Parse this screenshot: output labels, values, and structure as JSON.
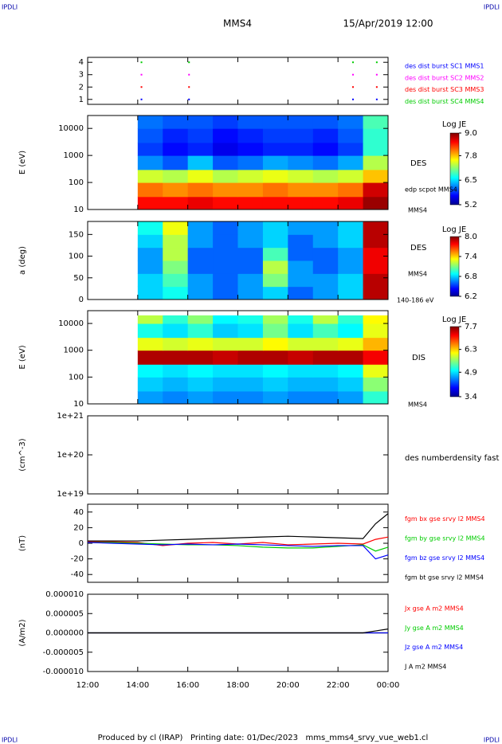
{
  "header": {
    "left": "IPDLI",
    "right": "IPDLI",
    "title": "MMS4",
    "date": "15/Apr/2019 12:00"
  },
  "footer": {
    "left": "IPDLI",
    "text": "Produced by cl (IRAP)   Printing date: 01/Dec/2023   mms_mms4_srvy_vue_web1.cl",
    "right": "IPDLI"
  },
  "chart_data": [
    {
      "type": "scatter",
      "xlim": [
        12,
        24
      ],
      "ylim": [
        0.6,
        4.4
      ],
      "yticks": [
        1,
        2,
        3,
        4
      ],
      "series": [
        {
          "name": "des dist burst SC1 MMS1",
          "color": "#0000ff",
          "x": [
            14.15,
            16.05,
            22.6,
            23.55
          ],
          "values": [
            1,
            1,
            1,
            1
          ]
        },
        {
          "name": "des dist burst SC2 MMS2",
          "color": "#ff00ff",
          "x": [
            14.15,
            16.05,
            22.6,
            23.55
          ],
          "values": [
            3,
            3,
            3,
            3
          ]
        },
        {
          "name": "des dist burst SC3 MMS3",
          "color": "#ff0000",
          "x": [
            14.15,
            16.05,
            22.6,
            23.55
          ],
          "values": [
            2,
            2,
            2,
            2
          ]
        },
        {
          "name": "des dist burst SC4 MMS4",
          "color": "#00cc00",
          "x": [
            14.15,
            16.05,
            22.6,
            23.55
          ],
          "values": [
            4,
            4,
            4,
            4
          ]
        }
      ]
    },
    {
      "type": "heatmap",
      "ylabel": "E (eV)",
      "log": true,
      "xlim": [
        12,
        24
      ],
      "ylim": [
        10,
        30000
      ],
      "yticks": [
        10,
        100,
        1000,
        10000
      ],
      "colormap": "jet",
      "colorbar_label": "Log JE",
      "zlim": [
        5.2,
        9.0
      ],
      "zticks": [
        {
          "value": 9.0,
          "label": "9.0"
        },
        {
          "value": 7.8,
          "label": "7.8"
        },
        {
          "value": 6.5,
          "label": "6.5"
        },
        {
          "value": 5.2,
          "label": "5.2"
        }
      ],
      "right_labels": [
        "DES",
        "edp scpot MMS4",
        "MMS4"
      ],
      "xbins": [
        14,
        15,
        16,
        17,
        18,
        19,
        20,
        21,
        22,
        23,
        24
      ],
      "ybins": [
        10,
        30,
        100,
        300,
        1000,
        3000,
        10000,
        30000
      ],
      "z": [
        [
          8.5,
          8.5,
          8.6,
          8.5,
          8.5,
          8.5,
          8.5,
          8.5,
          8.6,
          8.9
        ],
        [
          8.1,
          8.0,
          8.1,
          8.0,
          8.0,
          8.1,
          8.0,
          8.0,
          8.1,
          8.7
        ],
        [
          7.4,
          7.3,
          7.5,
          7.3,
          7.4,
          7.5,
          7.4,
          7.3,
          7.4,
          7.8
        ],
        [
          6.2,
          6.0,
          6.4,
          6.0,
          6.1,
          6.3,
          6.2,
          6.1,
          6.3,
          7.3
        ],
        [
          5.9,
          5.7,
          5.8,
          5.6,
          5.7,
          5.8,
          5.8,
          5.7,
          5.9,
          6.8
        ],
        [
          6.0,
          5.8,
          5.9,
          5.7,
          5.8,
          5.9,
          5.9,
          5.8,
          6.0,
          6.8
        ],
        [
          6.1,
          6.0,
          6.0,
          5.9,
          6.0,
          6.0,
          6.0,
          6.0,
          6.1,
          6.9
        ]
      ]
    },
    {
      "type": "heatmap",
      "ylabel": "a (deg)",
      "xlim": [
        12,
        24
      ],
      "ylim": [
        0,
        180
      ],
      "yticks": [
        0,
        50,
        100,
        150
      ],
      "colormap": "jet",
      "colorbar_label": "Log JE",
      "zlim": [
        6.2,
        8.0
      ],
      "zticks": [
        {
          "value": 8.0,
          "label": "8.0"
        },
        {
          "value": 7.4,
          "label": "7.4"
        },
        {
          "value": 6.8,
          "label": "6.8"
        },
        {
          "value": 6.2,
          "label": "6.2"
        }
      ],
      "right_labels": [
        "DES",
        "MMS4",
        "140-186 eV"
      ],
      "xbins": [
        14,
        15,
        16,
        17,
        18,
        19,
        20,
        21,
        22,
        23,
        24
      ],
      "ybins": [
        0,
        30,
        60,
        90,
        120,
        150,
        180
      ],
      "z": [
        [
          6.8,
          6.9,
          6.7,
          6.6,
          6.7,
          6.8,
          6.6,
          6.7,
          6.8,
          7.9
        ],
        [
          6.8,
          7.0,
          6.7,
          6.6,
          6.7,
          7.1,
          6.7,
          6.7,
          6.8,
          7.9
        ],
        [
          6.7,
          7.1,
          6.6,
          6.6,
          6.6,
          7.2,
          6.7,
          6.6,
          6.7,
          7.8
        ],
        [
          6.7,
          7.2,
          6.6,
          6.6,
          6.6,
          7.0,
          6.6,
          6.6,
          6.7,
          7.8
        ],
        [
          6.8,
          7.2,
          6.7,
          6.6,
          6.7,
          6.8,
          6.6,
          6.7,
          6.8,
          7.9
        ],
        [
          6.9,
          7.3,
          6.7,
          6.6,
          6.7,
          6.8,
          6.7,
          6.7,
          6.8,
          7.9
        ]
      ]
    },
    {
      "type": "heatmap",
      "ylabel": "E (eV)",
      "log": true,
      "xlim": [
        12,
        24
      ],
      "ylim": [
        10,
        30000
      ],
      "yticks": [
        10,
        100,
        1000,
        10000
      ],
      "colormap": "jet",
      "colorbar_label": "Log JE",
      "zlim": [
        3.4,
        7.7
      ],
      "zticks": [
        {
          "value": 7.7,
          "label": "7.7"
        },
        {
          "value": 6.3,
          "label": "6.3"
        },
        {
          "value": 4.9,
          "label": "4.9"
        },
        {
          "value": 3.4,
          "label": "3.4"
        }
      ],
      "right_labels": [
        "DIS",
        "MMS4"
      ],
      "xbins": [
        14,
        15,
        16,
        17,
        18,
        19,
        20,
        21,
        22,
        23,
        24
      ],
      "ybins": [
        10,
        30,
        100,
        300,
        1000,
        3000,
        10000,
        20000
      ],
      "z": [
        [
          4.6,
          4.5,
          4.6,
          4.5,
          4.5,
          4.6,
          4.5,
          4.5,
          4.6,
          5.2
        ],
        [
          4.8,
          4.7,
          4.8,
          4.7,
          4.7,
          4.8,
          4.7,
          4.7,
          4.8,
          5.6
        ],
        [
          5.0,
          4.9,
          5.0,
          4.9,
          4.9,
          5.0,
          4.9,
          4.9,
          5.0,
          6.0
        ],
        [
          7.5,
          7.5,
          7.5,
          7.4,
          7.5,
          7.5,
          7.4,
          7.5,
          7.5,
          7.2
        ],
        [
          6.0,
          5.9,
          6.0,
          5.9,
          5.9,
          6.1,
          5.9,
          5.9,
          6.0,
          6.4
        ],
        [
          5.1,
          4.9,
          5.2,
          4.8,
          4.9,
          5.5,
          4.9,
          5.3,
          5.0,
          6.0
        ],
        [
          5.8,
          5.2,
          5.6,
          5.0,
          5.1,
          5.7,
          5.1,
          5.8,
          5.2,
          6.1
        ]
      ]
    },
    {
      "type": "line",
      "ylabel": "(cm^-3)",
      "log": true,
      "xlim": [
        12,
        24
      ],
      "ylim": [
        1e+19,
        1e+21
      ],
      "yticks": [
        {
          "value": 1e+19,
          "label": "1e+19"
        },
        {
          "value": 1e+20,
          "label": "1e+20"
        },
        {
          "value": 1e+21,
          "label": "1e+21"
        }
      ],
      "right_labels": [
        "des numberdensity fast M"
      ]
    },
    {
      "type": "line",
      "ylabel": "(nT)",
      "xlim": [
        12,
        24
      ],
      "ylim": [
        -50,
        50
      ],
      "yticks": [
        -40,
        -20,
        0,
        20,
        40
      ],
      "x": [
        12,
        13,
        14,
        15,
        16,
        17,
        18,
        19,
        20,
        21,
        22,
        23,
        23.5,
        24
      ],
      "series": [
        {
          "name": "fgm bx gse srvy l2 MMS4",
          "color": "#ff0000",
          "values": [
            2,
            2,
            1,
            -3,
            0,
            1,
            -1,
            1,
            -2,
            -1,
            0,
            -1,
            5,
            8
          ]
        },
        {
          "name": "fgm by gse srvy l2 MMS4",
          "color": "#00cc00",
          "values": [
            1,
            1,
            0,
            -1,
            -2,
            -2,
            -3,
            -5,
            -6,
            -6,
            -4,
            -2,
            -10,
            -5
          ]
        },
        {
          "name": "fgm bz gse srvy l2 MMS4",
          "color": "#0000ff",
          "values": [
            1,
            0,
            -1,
            -2,
            -1,
            -2,
            -1,
            -2,
            -3,
            -4,
            -3,
            -3,
            -20,
            -15
          ]
        },
        {
          "name": "fgm bt gse srvy l2 MMS4",
          "color": "#000000",
          "values": [
            3,
            3,
            3,
            4,
            5,
            6,
            7,
            8,
            9,
            8,
            7,
            6,
            25,
            38
          ]
        }
      ]
    },
    {
      "type": "line",
      "ylabel": "(A/m2)",
      "xlim": [
        12,
        24
      ],
      "ylim": [
        -1e-05,
        1e-05
      ],
      "yticks": [
        {
          "value": 1e-05,
          "label": "0.000010"
        },
        {
          "value": 5e-06,
          "label": "0.000005"
        },
        {
          "value": 0,
          "label": "0.000000"
        },
        {
          "value": -5e-06,
          "label": "-0.000005"
        },
        {
          "value": -1e-05,
          "label": "-0.000010"
        }
      ],
      "xticks": [
        {
          "value": 12,
          "label": "12:00"
        },
        {
          "value": 14,
          "label": "14:00"
        },
        {
          "value": 16,
          "label": "16:00"
        },
        {
          "value": 18,
          "label": "18:00"
        },
        {
          "value": 20,
          "label": "20:00"
        },
        {
          "value": 22,
          "label": "22:00"
        },
        {
          "value": 24,
          "label": "00:00"
        }
      ],
      "x": [
        12,
        13,
        14,
        15,
        16,
        17,
        18,
        19,
        20,
        21,
        22,
        23,
        23.5,
        24
      ],
      "series": [
        {
          "name": "Jx gse A m2 MMS4",
          "color": "#ff0000",
          "values": [
            0,
            0,
            0,
            0,
            0,
            0,
            0,
            0,
            0,
            0,
            0,
            0,
            0,
            0
          ]
        },
        {
          "name": "Jy gse A m2 MMS4",
          "color": "#00cc00",
          "values": [
            0,
            0,
            0,
            0,
            0,
            0,
            0,
            0,
            0,
            0,
            0,
            0,
            0,
            0
          ]
        },
        {
          "name": "Jz gse A m2 MMS4",
          "color": "#0000ff",
          "values": [
            0,
            0,
            0,
            0,
            0,
            0,
            0,
            0,
            0,
            0,
            0,
            0,
            0,
            0
          ]
        },
        {
          "name": "J A m2 MMS4",
          "color": "#000000",
          "values": [
            0,
            0,
            0,
            0,
            0,
            0,
            0,
            0,
            0,
            0,
            0,
            0,
            5e-07,
            1e-06
          ]
        }
      ]
    }
  ]
}
